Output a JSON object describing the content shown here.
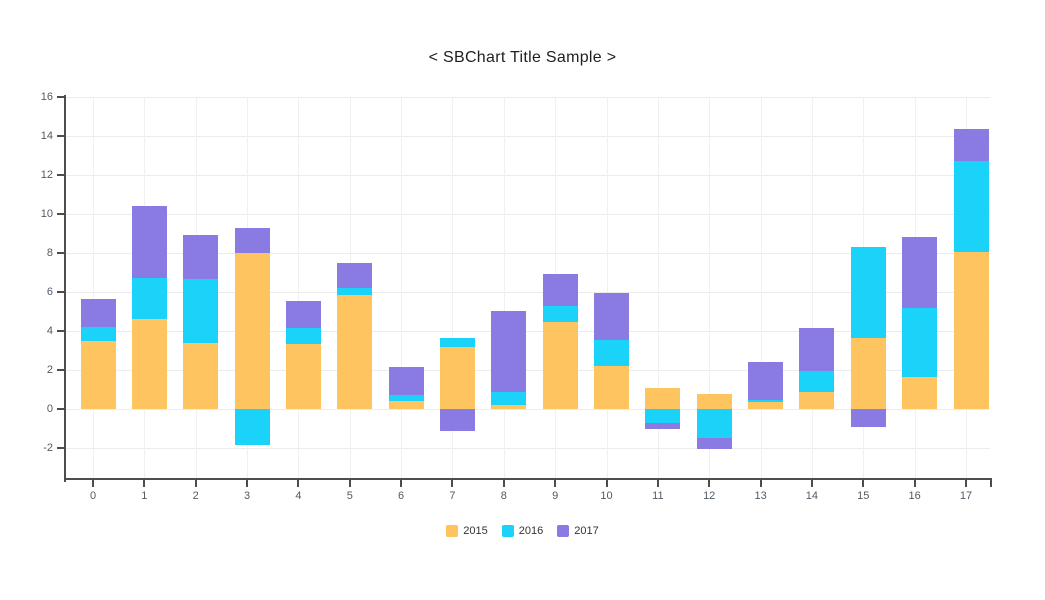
{
  "title": "< SBChart Title Sample >",
  "chart_data": {
    "type": "bar",
    "stacked": true,
    "title": "< SBChart Title Sample >",
    "categories": [
      "0",
      "1",
      "2",
      "3",
      "4",
      "5",
      "6",
      "7",
      "8",
      "9",
      "10",
      "11",
      "12",
      "13",
      "14",
      "15",
      "16",
      "17"
    ],
    "series": [
      {
        "name": "2015",
        "color": "#FDC45F",
        "values": [
          3.5,
          4.6,
          3.4,
          8.0,
          3.35,
          5.85,
          0.4,
          3.2,
          0.2,
          4.45,
          2.2,
          1.1,
          0.75,
          0.35,
          0.9,
          3.65,
          1.65,
          8.05
        ]
      },
      {
        "name": "2016",
        "color": "#1BD3F8",
        "values": [
          0.7,
          2.1,
          3.25,
          -1.85,
          0.8,
          0.35,
          0.3,
          0.45,
          0.65,
          0.85,
          1.35,
          -0.7,
          -1.5,
          0.1,
          1.05,
          4.65,
          3.55,
          4.65
        ]
      },
      {
        "name": "2017",
        "color": "#8A7BE3",
        "values": [
          1.45,
          3.7,
          2.3,
          1.3,
          1.4,
          1.3,
          1.45,
          -1.1,
          4.2,
          1.65,
          2.4,
          -0.35,
          -0.55,
          1.95,
          2.2,
          -0.9,
          3.6,
          1.65
        ]
      }
    ],
    "ylim": [
      -2,
      16
    ],
    "yticks": [
      16,
      14,
      12,
      10,
      8,
      6,
      4,
      2,
      0,
      -2
    ],
    "grid": true,
    "legend_position": "bottom",
    "axis_color": "#4d4d4d",
    "grid_color": "#ececec",
    "tick_label_color": "#4f5b66"
  }
}
